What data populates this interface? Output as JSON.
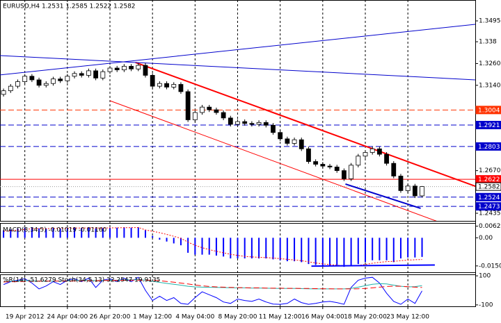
{
  "chart_data": [
    {
      "type": "candlestick",
      "title": "EURUSD,H4  1.2531 1.2585 1.2522 1.2582",
      "categories": [
        null,
        null,
        null,
        "19 Apr 2012",
        null,
        null,
        null,
        null,
        null,
        "24 Apr 04:00",
        null,
        null,
        null,
        null,
        null,
        "26 Apr 20:00",
        null,
        null,
        null,
        null,
        null,
        "1 May 12:00",
        null,
        null,
        null,
        null,
        null,
        "4 May 04:00",
        null,
        null,
        null,
        null,
        null,
        "8 May 20:00",
        null,
        null,
        null,
        null,
        null,
        "11 May 12:00",
        null,
        null,
        null,
        null,
        null,
        "16 May 04:00",
        null,
        null,
        null,
        null,
        null,
        "18 May 20:00",
        null,
        null,
        null,
        null,
        null,
        "23 May 12:00",
        null,
        null
      ],
      "open": [
        1.309,
        1.311,
        1.3135,
        1.316,
        1.319,
        1.317,
        1.314,
        1.315,
        1.3175,
        1.3165,
        1.319,
        1.3205,
        1.3195,
        1.322,
        1.318,
        1.3215,
        1.3235,
        1.3225,
        1.3245,
        1.323,
        1.325,
        1.3195,
        1.3135,
        1.315,
        1.313,
        1.3145,
        1.3105,
        1.295,
        1.299,
        1.302,
        1.3005,
        1.299,
        1.296,
        1.2925,
        1.294,
        1.293,
        1.2925,
        1.2935,
        1.292,
        1.288,
        1.2845,
        1.282,
        1.284,
        1.279,
        1.272,
        1.2705,
        1.2695,
        1.269,
        1.267,
        1.2625,
        1.27,
        1.275,
        1.277,
        1.279,
        1.276,
        1.271,
        1.264,
        1.256,
        1.2585,
        1.2531
      ],
      "high": [
        1.3122,
        1.3147,
        1.3172,
        1.3202,
        1.3202,
        1.3182,
        1.3162,
        1.3187,
        1.3187,
        1.3202,
        1.3217,
        1.3217,
        1.3232,
        1.3232,
        1.3227,
        1.3247,
        1.3247,
        1.3257,
        1.3257,
        1.3262,
        1.3262,
        1.3207,
        1.3162,
        1.3162,
        1.3157,
        1.3157,
        1.3117,
        1.3002,
        1.3032,
        1.3032,
        1.3017,
        1.3002,
        1.2972,
        1.2952,
        1.2952,
        1.2942,
        1.2947,
        1.2947,
        1.2932,
        1.2892,
        1.2857,
        1.2852,
        1.2852,
        1.2802,
        1.2732,
        1.2717,
        1.2707,
        1.2702,
        1.2682,
        1.2712,
        1.2762,
        1.2782,
        1.2802,
        1.2802,
        1.2772,
        1.2722,
        1.2652,
        1.2597,
        1.2597,
        1.2585
      ],
      "low": [
        1.3078,
        1.3098,
        1.3123,
        1.3148,
        1.3158,
        1.3128,
        1.3128,
        1.3138,
        1.3153,
        1.3153,
        1.3178,
        1.3183,
        1.3183,
        1.3168,
        1.3168,
        1.3203,
        1.3213,
        1.3213,
        1.3218,
        1.3218,
        1.3183,
        1.3123,
        1.3123,
        1.3118,
        1.3118,
        1.3093,
        1.2938,
        1.2938,
        1.2978,
        1.2993,
        1.2978,
        1.2948,
        1.2913,
        1.2913,
        1.2918,
        1.2913,
        1.2913,
        1.2908,
        1.2868,
        1.2833,
        1.2808,
        1.2808,
        1.2778,
        1.2708,
        1.2693,
        1.2683,
        1.2678,
        1.2658,
        1.2613,
        1.2613,
        1.2688,
        1.2738,
        1.2758,
        1.2748,
        1.2698,
        1.2628,
        1.2548,
        1.2548,
        1.2519,
        1.2522
      ],
      "close": [
        1.311,
        1.3135,
        1.316,
        1.319,
        1.317,
        1.314,
        1.315,
        1.3175,
        1.3165,
        1.319,
        1.3205,
        1.3195,
        1.322,
        1.318,
        1.3215,
        1.3235,
        1.3225,
        1.3245,
        1.323,
        1.325,
        1.3195,
        1.3135,
        1.315,
        1.313,
        1.3145,
        1.3105,
        1.295,
        1.299,
        1.302,
        1.3005,
        1.299,
        1.296,
        1.2925,
        1.294,
        1.293,
        1.2925,
        1.2935,
        1.292,
        1.288,
        1.2845,
        1.282,
        1.284,
        1.279,
        1.272,
        1.2705,
        1.2695,
        1.269,
        1.267,
        1.2625,
        1.27,
        1.275,
        1.277,
        1.279,
        1.276,
        1.271,
        1.264,
        1.256,
        1.2585,
        1.2531,
        1.2582
      ],
      "xlim": [
        -0.5,
        66.5
      ],
      "ylim": [
        1.2393,
        1.361
      ],
      "yticks": [
        1.3495,
        1.338,
        {
          "value": 1.326,
          "label": "1.3260"
        },
        {
          "value": 1.314,
          "label": "1.3140"
        },
        {
          "value": 1.267,
          "label": "1.2670"
        },
        1.2435
      ],
      "levels": [
        {
          "value": 1.3004,
          "color": "#ff3300",
          "style": "dash"
        },
        {
          "value": 1.2921,
          "color": "#0000cc",
          "style": "dash"
        },
        {
          "value": 1.2803,
          "color": "#0000cc",
          "style": "dash"
        },
        {
          "value": 1.2622,
          "color": "#ff0000",
          "style": "solid"
        },
        {
          "value": 1.2582,
          "color": "#999999",
          "style": "dot"
        },
        {
          "value": 1.2524,
          "color": "#0000cc",
          "style": "dash"
        },
        {
          "value": 1.2473,
          "color": "#0000cc",
          "style": "dash"
        }
      ],
      "trendlines": [
        {
          "from": [
            18.6,
            1.3266
          ],
          "to": [
            66.5,
            1.2584
          ],
          "color": "#ff0000",
          "width": 2
        },
        {
          "from": [
            15,
            1.3055
          ],
          "to": [
            61.5,
            1.2385
          ],
          "color": "#ff0000",
          "width": 1
        },
        {
          "from": [
            -0.5,
            1.3304
          ],
          "to": [
            66.5,
            1.317
          ],
          "color": "#0000cc",
          "width": 1
        },
        {
          "from": [
            -0.5,
            1.3197
          ],
          "to": [
            66.5,
            1.3476
          ],
          "color": "#0000cc",
          "width": 1
        },
        {
          "from": [
            48.2,
            1.2596
          ],
          "to": [
            58.8,
            1.2462
          ],
          "color": "#0000cc",
          "width": 2
        }
      ]
    },
    {
      "type": "macd",
      "title": "MACD(8,34,5) -0.01019 -0.01160",
      "values": [
        0.004,
        0.0045,
        0.005,
        0.0055,
        0.0055,
        0.005,
        0.005,
        0.0052,
        0.005,
        0.0052,
        0.0054,
        0.0053,
        0.0055,
        0.005,
        0.0052,
        0.0055,
        0.0054,
        0.0056,
        0.0054,
        0.0056,
        0.004,
        0.001,
        -0.001,
        -0.002,
        -0.003,
        -0.004,
        -0.008,
        -0.009,
        -0.009,
        -0.009,
        -0.0095,
        -0.01,
        -0.011,
        -0.011,
        -0.011,
        -0.011,
        -0.011,
        -0.011,
        -0.0115,
        -0.012,
        -0.0125,
        -0.0125,
        -0.013,
        -0.014,
        -0.0145,
        -0.015,
        -0.015,
        -0.015,
        -0.0155,
        -0.015,
        -0.014,
        -0.013,
        -0.012,
        -0.012,
        -0.012,
        -0.013,
        -0.011,
        -0.0105,
        -0.0105,
        -0.01019
      ],
      "color": "#0000ff",
      "signal": {
        "color": "#ff0000",
        "values": [
          0.0035,
          0.0038,
          0.0041,
          0.0045,
          0.0048,
          0.0049,
          0.0049,
          0.005,
          0.005,
          0.0051,
          0.0052,
          0.0052,
          0.0053,
          0.0052,
          0.0052,
          0.0053,
          0.0053,
          0.0054,
          0.0054,
          0.0055,
          0.0042,
          0.0035,
          0.0027,
          0.0018,
          0.0008,
          -0.0003,
          -0.0023,
          -0.004,
          -0.0053,
          -0.0063,
          -0.0072,
          -0.008,
          -0.0088,
          -0.0094,
          -0.0099,
          -0.0102,
          -0.0104,
          -0.0106,
          -0.0108,
          -0.0111,
          -0.0115,
          -0.0118,
          -0.0122,
          -0.0128,
          -0.0134,
          -0.0139,
          -0.0143,
          -0.0146,
          -0.0149,
          -0.0149,
          -0.0147,
          -0.0142,
          -0.0136,
          -0.0131,
          -0.0127,
          -0.0126,
          -0.0122,
          -0.0119,
          -0.0117,
          -0.0116
        ]
      },
      "ylim": [
        -0.0184,
        0.0079
      ],
      "yticks": [
        0.00621,
        {
          "value": 0,
          "label": "0.00"
        },
        {
          "value": -0.015,
          "label": "-0.0150"
        }
      ],
      "trendlines": [
        {
          "from": [
            43.4,
            -0.0151
          ],
          "to": [
            60.8,
            -0.0145
          ],
          "color": "#0000ff",
          "width": 2
        }
      ]
    },
    {
      "type": "line",
      "title": "%R(14) -51.6279  Stoch(34,5,13) 32.2547 19.9135",
      "series": [
        {
          "color": "#0000ff",
          "axis": "y2",
          "style": "solid",
          "values": [
            -30,
            -20,
            -15,
            -10,
            -25,
            -45,
            -35,
            -20,
            -30,
            -15,
            -10,
            -20,
            -8,
            -40,
            -15,
            -10,
            -20,
            -8,
            -20,
            -5,
            -50,
            -85,
            -70,
            -85,
            -75,
            -95,
            -98,
            -75,
            -55,
            -65,
            -75,
            -90,
            -95,
            -80,
            -85,
            -88,
            -80,
            -90,
            -97,
            -98,
            -95,
            -80,
            -92,
            -98,
            -95,
            -90,
            -88,
            -92,
            -98,
            -40,
            -15,
            -8,
            -5,
            -25,
            -60,
            -88,
            -98,
            -80,
            -95,
            -51.6279
          ]
        },
        {
          "color": "#20b2aa",
          "style": "solid",
          "values": [
            60,
            62,
            64,
            66,
            66,
            64,
            63,
            64,
            64,
            66,
            68,
            68,
            70,
            68,
            68,
            70,
            70,
            72,
            72,
            74,
            70,
            62,
            55,
            48,
            42,
            36,
            28,
            24,
            22,
            21,
            20,
            19,
            18,
            17,
            17,
            16,
            16,
            15,
            14,
            13,
            13,
            13,
            12,
            11,
            10,
            10,
            10,
            10,
            10,
            14,
            22,
            32,
            42,
            46,
            44,
            36,
            28,
            24,
            26,
            32.2547
          ]
        },
        {
          "color": "#ff0000",
          "style": "dash",
          "values": [
            58,
            59,
            60,
            61,
            62,
            63,
            63,
            64,
            64,
            64,
            65,
            66,
            67,
            67,
            68,
            68,
            69,
            70,
            70,
            71,
            71,
            69,
            66,
            61,
            56,
            50,
            44,
            37,
            31,
            27,
            24,
            22,
            20,
            19,
            18,
            17,
            17,
            16,
            15,
            15,
            14,
            14,
            13,
            13,
            12,
            11,
            11,
            10,
            10,
            10,
            11,
            13,
            17,
            22,
            27,
            29,
            28,
            25,
            22,
            19.9135
          ]
        }
      ],
      "ylim": [
        -110,
        110
      ],
      "yticks": [
        100,
        -100
      ],
      "y2lim": [
        -105,
        5
      ]
    }
  ]
}
